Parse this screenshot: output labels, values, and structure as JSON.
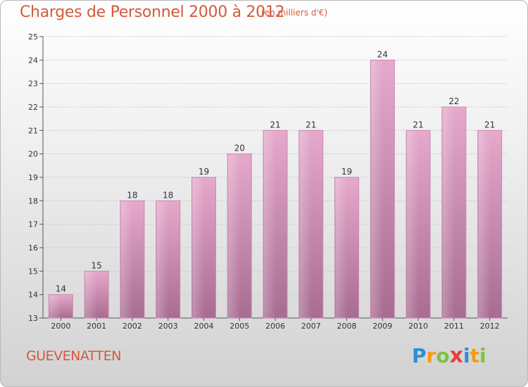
{
  "title": "Charges de Personnel 2000 à 2012",
  "subtitle": "(en milliers d'€)",
  "commune": "GUEVENATTEN",
  "logo": {
    "letters": [
      "P",
      "r",
      "o",
      "x",
      "i",
      "t",
      "i"
    ],
    "colors": [
      "#2b8fd6",
      "#f39c12",
      "#7dc242",
      "#e8403b",
      "#2b8fd6",
      "#f39c12",
      "#7dc242"
    ]
  },
  "chart_data": {
    "type": "bar",
    "title": "Charges de Personnel 2000 à 2012",
    "subtitle": "(en milliers d'€)",
    "categories": [
      "2000",
      "2001",
      "2002",
      "2003",
      "2004",
      "2005",
      "2006",
      "2007",
      "2008",
      "2009",
      "2010",
      "2011",
      "2012"
    ],
    "values": [
      14,
      15,
      18,
      18,
      19,
      20,
      21,
      21,
      19,
      24,
      21,
      22,
      21
    ],
    "ylim": [
      13,
      25
    ],
    "yticks": [
      13,
      14,
      15,
      16,
      17,
      18,
      19,
      20,
      21,
      22,
      23,
      24,
      25
    ],
    "grid": true,
    "bar_color": "#d98fb8"
  }
}
